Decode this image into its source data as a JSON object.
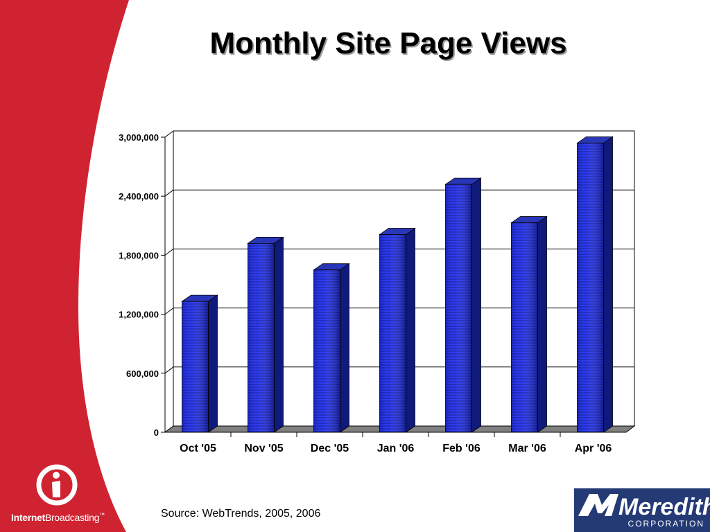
{
  "slide": {
    "title": "Monthly Site Page Views",
    "source": "Source: WebTrends, 2005, 2006"
  },
  "logos": {
    "left_brand_bold": "Internet",
    "left_brand_regular": "Broadcasting",
    "left_brand_tm": "™",
    "right_brand_name": "Meredith",
    "right_brand_sub": "CORPORATION"
  },
  "colors": {
    "red_band": "#d02331",
    "bar_front": "#1a26d8",
    "bar_side": "#101a7a",
    "bar_top": "#2a36b8",
    "floor": "#808080",
    "meredith_blue": "#243a75"
  },
  "chart_data": {
    "type": "bar",
    "categories": [
      "Oct '05",
      "Nov '05",
      "Dec '05",
      "Jan '06",
      "Feb '06",
      "Mar '06",
      "Apr '06"
    ],
    "values": [
      1330000,
      1920000,
      1650000,
      2010000,
      2520000,
      2130000,
      2940000
    ],
    "title": "",
    "xlabel": "",
    "ylabel": "",
    "ylim": [
      0,
      3000000
    ],
    "yticks": [
      0,
      600000,
      1200000,
      1800000,
      2400000,
      3000000
    ],
    "ytick_labels": [
      "0",
      "600,000",
      "1,200,000",
      "1,800,000",
      "2,400,000",
      "3,000,000"
    ],
    "grid": true,
    "legend": "none",
    "style": "3d"
  }
}
